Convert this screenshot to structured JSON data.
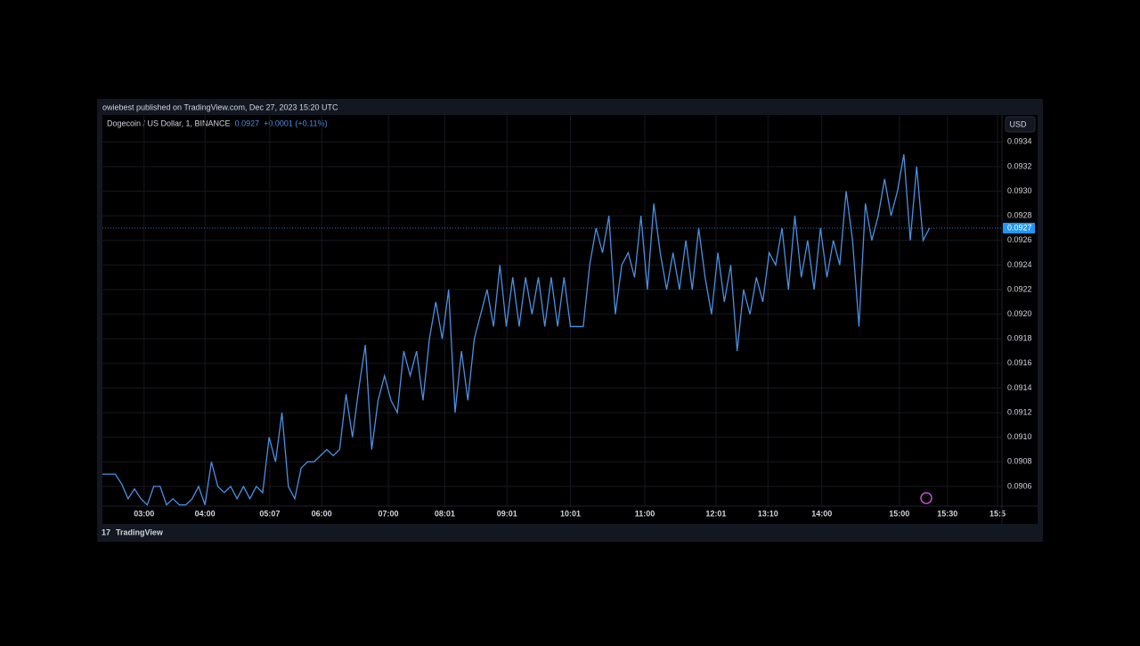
{
  "header": {
    "publisher": "owiebest published on TradingView.com, Dec 27, 2023 15:20 UTC",
    "footer_brand": "TradingView"
  },
  "chart_data": {
    "type": "line",
    "title": "Dogecoin / US Dollar, 1, BINANCE",
    "last_price": 0.0927,
    "change": "+0.0001 (+0.11%)",
    "currency": "USD",
    "series": [
      {
        "color": "#4a90e2",
        "values": [
          0.0907,
          0.0907,
          0.0907,
          0.09062,
          0.0905,
          0.09058,
          0.0905,
          0.09045,
          0.0906,
          0.0906,
          0.09045,
          0.0905,
          0.09045,
          0.09045,
          0.0905,
          0.0906,
          0.09045,
          0.0908,
          0.0906,
          0.09055,
          0.0906,
          0.0905,
          0.0906,
          0.0905,
          0.0906,
          0.09055,
          0.091,
          0.0908,
          0.0912,
          0.0906,
          0.0905,
          0.09075,
          0.0908,
          0.0908,
          0.09085,
          0.0909,
          0.09085,
          0.0909,
          0.09135,
          0.091,
          0.0914,
          0.09175,
          0.0909,
          0.0913,
          0.0915,
          0.0913,
          0.0912,
          0.0917,
          0.0915,
          0.0917,
          0.0913,
          0.0918,
          0.0921,
          0.0918,
          0.0922,
          0.0912,
          0.0917,
          0.0913,
          0.0918,
          0.092,
          0.0922,
          0.0919,
          0.0924,
          0.0919,
          0.0923,
          0.0919,
          0.0923,
          0.092,
          0.0923,
          0.0919,
          0.0923,
          0.0919,
          0.0923,
          0.0919,
          0.0919,
          0.0919,
          0.0924,
          0.0927,
          0.0925,
          0.0928,
          0.092,
          0.0924,
          0.0925,
          0.0923,
          0.0928,
          0.0922,
          0.0929,
          0.0925,
          0.0922,
          0.0925,
          0.0922,
          0.0926,
          0.0922,
          0.0927,
          0.0923,
          0.092,
          0.0925,
          0.0921,
          0.0924,
          0.0917,
          0.0922,
          0.092,
          0.0923,
          0.0921,
          0.0925,
          0.0924,
          0.0927,
          0.0922,
          0.0928,
          0.0923,
          0.0926,
          0.0922,
          0.0927,
          0.0923,
          0.0926,
          0.0924,
          0.093,
          0.0926,
          0.0919,
          0.0929,
          0.0926,
          0.0928,
          0.0931,
          0.0928,
          0.093,
          0.0933,
          0.0926,
          0.0932,
          0.0926,
          0.0927
        ]
      }
    ],
    "xlim": [
      0,
      140.3
    ],
    "xticks": [
      {
        "value": 6.5,
        "label": "03:00"
      },
      {
        "value": 16,
        "label": "04:00"
      },
      {
        "value": 26.1,
        "label": "05:07"
      },
      {
        "value": 34.2,
        "label": "06:00"
      },
      {
        "value": 44.6,
        "label": "07:00"
      },
      {
        "value": 53.4,
        "label": "08:01"
      },
      {
        "value": 63.1,
        "label": "09:01"
      },
      {
        "value": 73,
        "label": "10:01"
      },
      {
        "value": 84.6,
        "label": "11:00"
      },
      {
        "value": 95.7,
        "label": "12:01"
      },
      {
        "value": 103.8,
        "label": "13:10"
      },
      {
        "value": 112.2,
        "label": "14:00"
      },
      {
        "value": 124.3,
        "label": "15:00"
      },
      {
        "value": 131.8,
        "label": "15:30"
      },
      {
        "value": 139.6,
        "label": "15:5"
      }
    ],
    "ylim": [
      0.09044,
      0.09362
    ],
    "yticks": [
      0.0906,
      0.0908,
      {
        "value": 0.091,
        "label": "0.0910"
      },
      0.0912,
      0.0914,
      0.0916,
      0.0918,
      {
        "value": 0.092,
        "label": "0.0920"
      },
      0.0922,
      0.0924,
      0.0926,
      0.0928,
      {
        "value": 0.093,
        "label": "0.0930"
      },
      0.0932,
      0.0934
    ],
    "grid": true
  }
}
